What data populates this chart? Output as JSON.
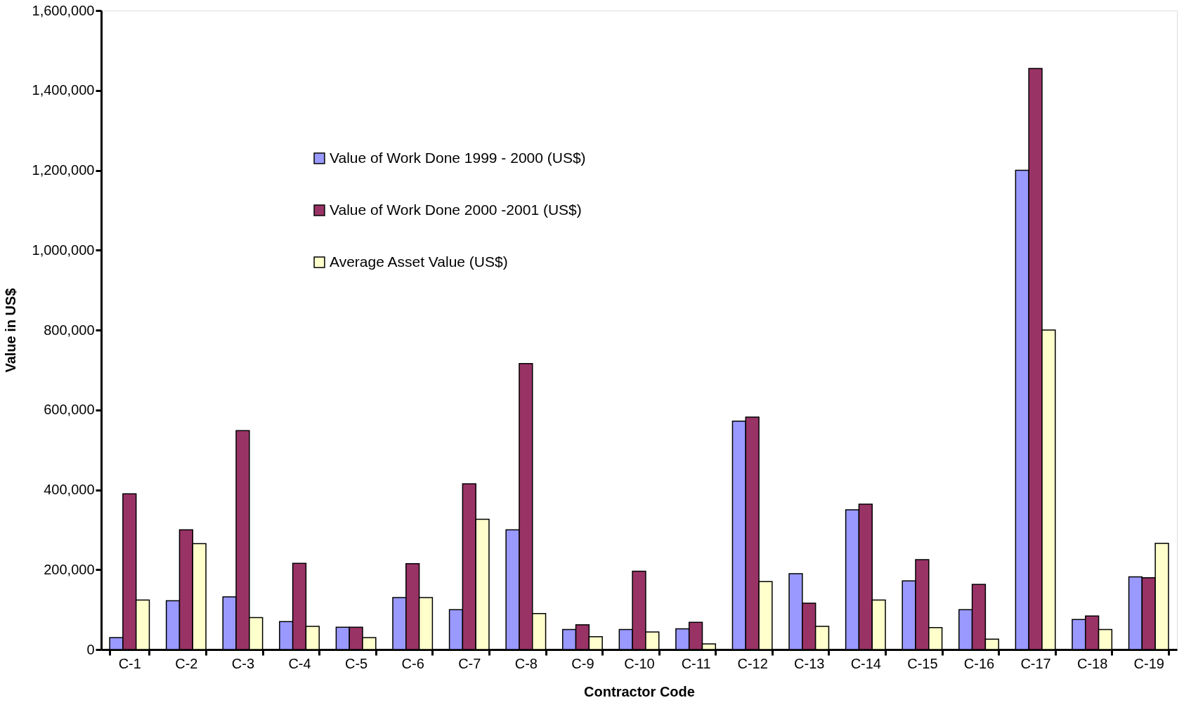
{
  "chart_data": {
    "type": "bar",
    "xlabel": "Contractor Code",
    "ylabel": "Value in US$",
    "categories": [
      "C-1",
      "C-2",
      "C-3",
      "C-4",
      "C-5",
      "C-6",
      "C-7",
      "C-8",
      "C-9",
      "C-10",
      "C-11",
      "C-12",
      "C-13",
      "C-14",
      "C-15",
      "C-16",
      "C-17",
      "C-18",
      "C-19"
    ],
    "series": [
      {
        "name": "Value of Work Done 1999 - 2000 (US$)",
        "color": "#9999ff",
        "values": [
          30000,
          122000,
          132000,
          70000,
          56000,
          130000,
          100000,
          300000,
          50000,
          50000,
          52000,
          572000,
          190000,
          350000,
          172000,
          100000,
          1200000,
          75000,
          182000
        ]
      },
      {
        "name": "Value of Work Done 2000 -2001 (US$)",
        "color": "#993366",
        "values": [
          390000,
          300000,
          548000,
          216000,
          56000,
          215000,
          415000,
          716000,
          62000,
          196000,
          68000,
          582000,
          116000,
          364000,
          225000,
          163000,
          1455000,
          84000,
          180000
        ]
      },
      {
        "name": "Average Asset Value (US$)",
        "color": "#ffffcc",
        "values": [
          124000,
          265000,
          80000,
          58000,
          30000,
          130000,
          326000,
          90000,
          32000,
          44000,
          14000,
          170000,
          58000,
          124000,
          55000,
          26000,
          800000,
          50000,
          266000
        ]
      }
    ],
    "ylim": [
      0,
      1600000
    ],
    "yticks": [
      0,
      {
        "value": 200000,
        "label": "200,000"
      },
      {
        "value": 400000,
        "label": "400,000"
      },
      {
        "value": 600000,
        "label": "600,000"
      },
      {
        "value": 800000,
        "label": "800,000"
      },
      {
        "value": 1000000,
        "label": "1,000,000"
      },
      {
        "value": 1200000,
        "label": "1,200,000"
      },
      {
        "value": 1400000,
        "label": "1,400,000"
      },
      {
        "value": 1600000,
        "label": "1,600,000"
      }
    ],
    "grid": false,
    "legend": "top left"
  }
}
